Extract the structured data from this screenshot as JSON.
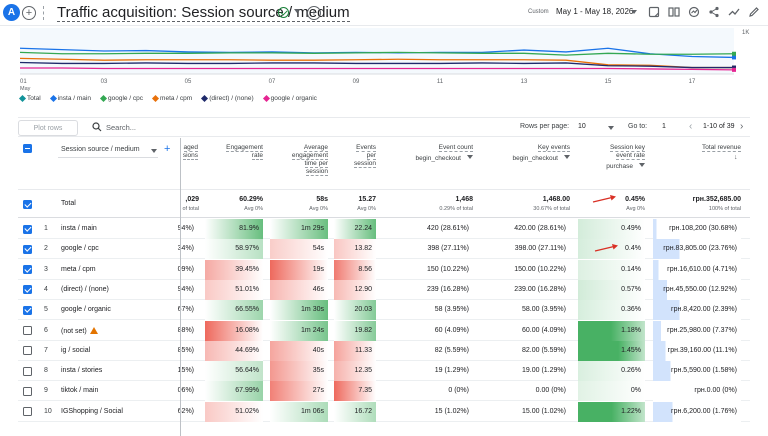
{
  "header": {
    "avatar_letter": "A",
    "title": "Traffic acquisition: Session source / medium",
    "date_custom": "Custom",
    "date_range": "May 1 - May 18, 2026"
  },
  "chart": {
    "y_max_label": "1K",
    "x_ticks": [
      "01",
      "03",
      "05",
      "07",
      "09",
      "11",
      "13",
      "15",
      "17"
    ],
    "x_month": "May",
    "legend": [
      {
        "label": "Total",
        "color": "#12939a"
      },
      {
        "label": "insta / main",
        "color": "#1a73e8"
      },
      {
        "label": "google / cpc",
        "color": "#34a853"
      },
      {
        "label": "meta / cpm",
        "color": "#e8710a"
      },
      {
        "label": "(direct) / (none)",
        "color": "#1f2a6b"
      },
      {
        "label": "google / organic",
        "color": "#e52592"
      }
    ]
  },
  "chart_data": {
    "type": "line",
    "x": [
      "01",
      "02",
      "03",
      "04",
      "05",
      "06",
      "07",
      "08",
      "09",
      "10",
      "11",
      "12",
      "13",
      "14",
      "15",
      "16",
      "17",
      "18"
    ],
    "ylim": [
      0,
      1000
    ],
    "series": [
      {
        "name": "insta / main",
        "color": "#1a73e8",
        "values": [
          560,
          530,
          500,
          510,
          480,
          470,
          480,
          460,
          470,
          460,
          470,
          470,
          520,
          480,
          560,
          440,
          380,
          360
        ]
      },
      {
        "name": "google / cpc",
        "color": "#34a853",
        "values": [
          470,
          440,
          440,
          450,
          450,
          460,
          460,
          450,
          460,
          470,
          460,
          450,
          450,
          410,
          450,
          430,
          430,
          440
        ]
      },
      {
        "name": "meta / cpm",
        "color": "#e8710a",
        "values": [
          340,
          320,
          300,
          310,
          310,
          310,
          300,
          300,
          310,
          320,
          310,
          310,
          310,
          300,
          200,
          190,
          140,
          140
        ]
      },
      {
        "name": "(direct) / (none)",
        "color": "#1f2a6b",
        "values": [
          250,
          230,
          230,
          240,
          230,
          230,
          240,
          240,
          230,
          230,
          230,
          240,
          230,
          240,
          180,
          170,
          140,
          140
        ]
      },
      {
        "name": "google / organic",
        "color": "#e52592",
        "values": [
          130,
          130,
          120,
          120,
          120,
          120,
          120,
          120,
          120,
          120,
          120,
          120,
          120,
          120,
          120,
          110,
          100,
          90
        ]
      }
    ]
  },
  "controls": {
    "plot_rows": "Plot rows",
    "search_placeholder": "Search...",
    "rows_per_page_label": "Rows per page:",
    "rows_per_page": "10",
    "goto_label": "Go to:",
    "goto_value": "1",
    "page_info": "1-10 of 39"
  },
  "table": {
    "dimension_select": "Session source / medium",
    "headers": {
      "sessions": [
        "aged",
        "sions"
      ],
      "engagement_rate": [
        "Engagement",
        "rate"
      ],
      "avg_engagement": [
        "Average",
        "engagement",
        "time per",
        "session"
      ],
      "events_per_session": [
        "Events",
        "per",
        "session"
      ],
      "event_count": [
        "Event count"
      ],
      "event_count_sub": "begin_checkout",
      "key_events": [
        "Key events"
      ],
      "key_events_sub": "begin_checkout",
      "skr": [
        "Session key",
        "event rate"
      ],
      "skr_sub": "purchase",
      "revenue": [
        "Total revenue"
      ]
    },
    "totals": {
      "label": "Total",
      "sessions": ",029",
      "sessions_sub": "of total",
      "engagement_rate": "60.29%",
      "engagement_rate_sub": "Avg 0%",
      "avg_engagement": "58s",
      "avg_engagement_sub": "Avg 0%",
      "events_per_session": "15.27",
      "events_per_session_sub": "Avg 0%",
      "event_count": "1,468",
      "event_count_sub": "0.29% of total",
      "key_events": "1,468.00",
      "key_events_sub": "30.67% of total",
      "skr": "0.45%",
      "skr_sub": "Avg 0%",
      "revenue": "грн.352,685.00",
      "revenue_sub": "100% of total"
    },
    "rows": [
      {
        "n": "1",
        "name": "insta / main",
        "checked": true,
        "sess": "94%)",
        "er": "81.9%",
        "aet": "1m 29s",
        "eps": "22.24",
        "ec": "420 (28.61%)",
        "ke": "420.00 (28.61%)",
        "skr": "0.49%",
        "rev": "грн.108,200 (30.68%)",
        "warn": false
      },
      {
        "n": "2",
        "name": "google / cpc",
        "checked": true,
        "sess": "34%)",
        "er": "58.97%",
        "aet": "54s",
        "eps": "13.82",
        "ec": "398 (27.11%)",
        "ke": "398.00 (27.11%)",
        "skr": "0.4%",
        "rev": "грн.83,805.00 (23.76%)",
        "warn": false
      },
      {
        "n": "3",
        "name": "meta / cpm",
        "checked": true,
        "sess": "09%)",
        "er": "39.45%",
        "aet": "19s",
        "eps": "8.56",
        "ec": "150 (10.22%)",
        "ke": "150.00 (10.22%)",
        "skr": "0.14%",
        "rev": "грн.16,610.00 (4.71%)",
        "warn": false
      },
      {
        "n": "4",
        "name": "(direct) / (none)",
        "checked": true,
        "sess": "94%)",
        "er": "51.01%",
        "aet": "46s",
        "eps": "12.90",
        "ec": "239 (16.28%)",
        "ke": "239.00 (16.28%)",
        "skr": "0.57%",
        "rev": "грн.45,550.00 (12.92%)",
        "warn": false
      },
      {
        "n": "5",
        "name": "google / organic",
        "checked": true,
        "sess": "67%)",
        "er": "66.55%",
        "aet": "1m 30s",
        "eps": "20.03",
        "ec": "58 (3.95%)",
        "ke": "58.00 (3.95%)",
        "skr": "0.36%",
        "rev": "грн.8,420.00 (2.39%)",
        "warn": false
      },
      {
        "n": "6",
        "name": "(not set)",
        "checked": false,
        "sess": "88%)",
        "er": "16.08%",
        "aet": "1m 24s",
        "eps": "19.82",
        "ec": "60 (4.09%)",
        "ke": "60.00 (4.09%)",
        "skr": "1.18%",
        "rev": "грн.25,980.00 (7.37%)",
        "warn": true
      },
      {
        "n": "7",
        "name": "ig / social",
        "checked": false,
        "sess": "85%)",
        "er": "44.69%",
        "aet": "40s",
        "eps": "11.33",
        "ec": "82 (5.59%)",
        "ke": "82.00 (5.59%)",
        "skr": "1.45%",
        "rev": "грн.39,160.00 (11.1%)",
        "warn": false
      },
      {
        "n": "8",
        "name": "insta / stories",
        "checked": false,
        "sess": "15%)",
        "er": "56.64%",
        "aet": "35s",
        "eps": "12.35",
        "ec": "19 (1.29%)",
        "ke": "19.00 (1.29%)",
        "skr": "0.26%",
        "rev": "грн.5,590.00 (1.58%)",
        "warn": false
      },
      {
        "n": "9",
        "name": "tiktok / main",
        "checked": false,
        "sess": "06%)",
        "er": "67.99%",
        "aet": "27s",
        "eps": "7.35",
        "ec": "0 (0%)",
        "ke": "0.00 (0%)",
        "skr": "0%",
        "rev": "грн.0.00 (0%)",
        "warn": false
      },
      {
        "n": "10",
        "name": "IGShopping / Social",
        "checked": false,
        "sess": "62%)",
        "er": "51.02%",
        "aet": "1m 06s",
        "eps": "16.72",
        "ec": "15 (1.02%)",
        "ke": "15.00 (1.02%)",
        "skr": "1.22%",
        "rev": "грн.6,200.00 (1.76%)",
        "warn": false
      }
    ]
  }
}
